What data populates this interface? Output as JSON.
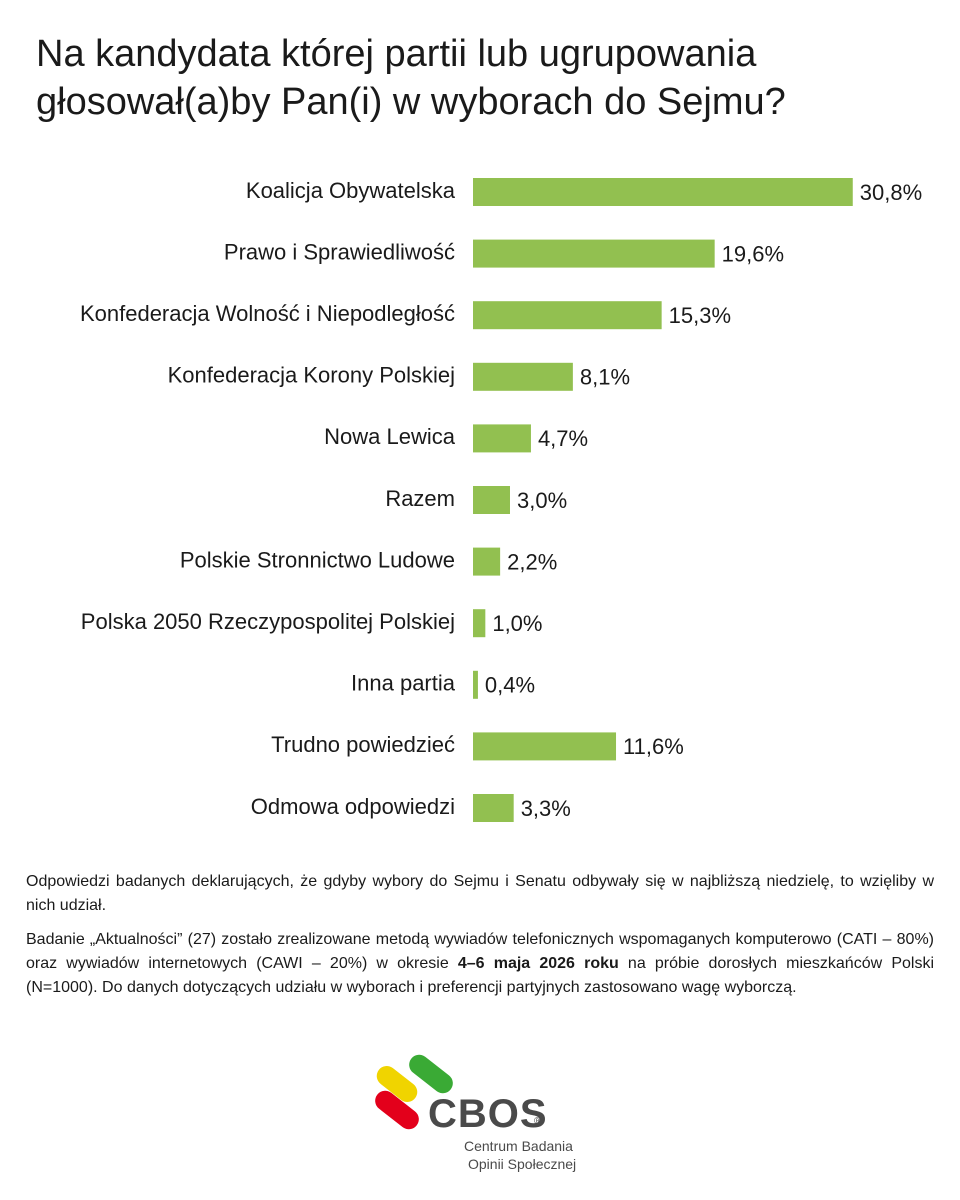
{
  "title_line1": "Na kandydata której partii lub ugrupowania",
  "title_line2": "głosował(a)by Pan(i) w wyborach do Sejmu?",
  "chart_data": {
    "type": "bar",
    "orientation": "horizontal",
    "categories": [
      "Koalicja Obywatelska",
      "Prawo i Sprawiedliwość",
      "Konfederacja Wolność i Niepodległość",
      "Konfederacja Korony Polskiej",
      "Nowa Lewica",
      "Razem",
      "Polskie Stronnictwo Ludowe",
      "Polska 2050 Rzeczypospolitej Polskiej",
      "Inna partia",
      "Trudno powiedzieć",
      "Odmowa odpowiedzi"
    ],
    "values": [
      30.8,
      19.6,
      15.3,
      8.1,
      4.7,
      3.0,
      2.2,
      1.0,
      0.4,
      11.6,
      3.3
    ],
    "value_labels": [
      "30,8%",
      "19,6%",
      "15,3%",
      "8,1%",
      "4,7%",
      "3,0%",
      "2,2%",
      "1,0%",
      "0,4%",
      "11,6%",
      "3,3%"
    ],
    "bar_color": "#92c050",
    "grid": false,
    "legend": "none"
  },
  "notes": {
    "p1": "Odpowiedzi badanych deklarujących, że gdyby wybory do Sejmu i Senatu odbywały się w najbliższą niedzielę, to wzięliby w nich udział.",
    "p2_before": "Badanie „Aktualności” (27) zostało zrealizowane metodą wywiadów telefonicznych wspomaganych komputerowo (CATI – 80%) oraz wywiadów internetowych (CAWI – 20%) w okresie ",
    "p2_bold": "4–6 maja 2026 roku",
    "p2_after": " na próbie dorosłych mieszkańców Polski (N=1000). Do danych dotyczących udziału w wyborach i preferencji partyjnych zastosowano wagę wyborczą."
  },
  "logo": {
    "name": "CBOS",
    "registered": "®",
    "line1": "Centrum Badania",
    "line2": "Opinii Społecznej",
    "colors": [
      "#f0d400",
      "#3aaa35",
      "#e3001b"
    ]
  }
}
